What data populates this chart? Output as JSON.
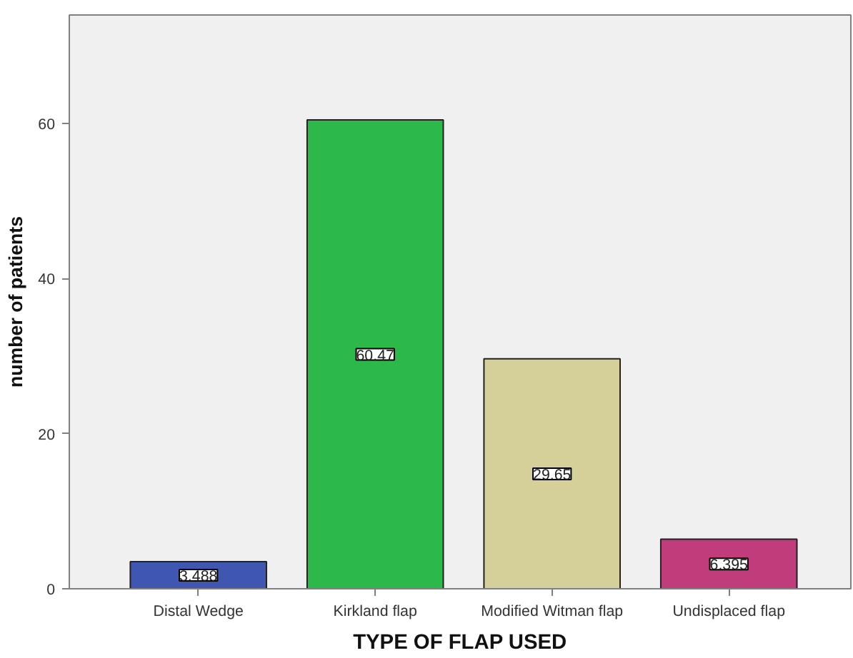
{
  "chart_data": {
    "type": "bar",
    "xlabel": "TYPE OF FLAP USED",
    "ylabel": "number of patients",
    "categories": [
      "Distal Wedge",
      "Kirkland flap",
      "Modified Witman flap",
      "Undisplaced flap"
    ],
    "values": [
      3.488,
      60.47,
      29.65,
      6.395
    ],
    "colors": [
      "#3f57b0",
      "#2db84a",
      "#d5d09a",
      "#c13c7b"
    ],
    "ylim": [
      0,
      74
    ],
    "yticks": [
      0,
      20,
      40,
      60
    ],
    "grid": false,
    "data_labels": true
  }
}
